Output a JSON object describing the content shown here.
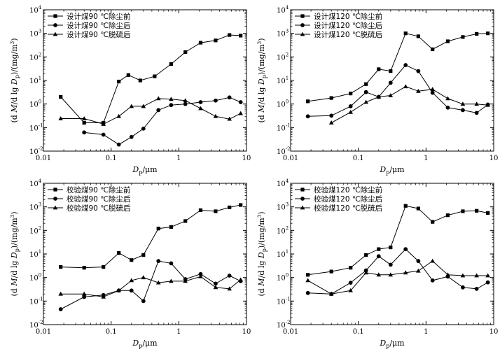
{
  "chart_data": [
    {
      "type": "line",
      "xscale": "log",
      "yscale": "log",
      "xlim": [
        0.01,
        10
      ],
      "ylim": [
        0.01,
        10000
      ],
      "xlabel": "Dp/μm",
      "ylabel": "(d M/d lg Dp)/(mg/m3)",
      "x_ticks": [
        "0.01",
        "0.1",
        "1",
        "10"
      ],
      "y_ticks": [
        {
          "base": "10",
          "exp": "-2"
        },
        {
          "base": "10",
          "exp": "-1"
        },
        {
          "base": "10",
          "exp": "0"
        },
        {
          "base": "10",
          "exp": "1"
        },
        {
          "base": "10",
          "exp": "2"
        },
        {
          "base": "10",
          "exp": "3"
        },
        {
          "base": "10",
          "exp": "4"
        }
      ],
      "legend_position": "top-left",
      "series": [
        {
          "name": "设计煤90 ℃除尘前",
          "marker": "square",
          "x": [
            0.018,
            0.04,
            0.077,
            0.13,
            0.18,
            0.27,
            0.44,
            0.77,
            1.25,
            2.1,
            3.5,
            5.6,
            8.2
          ],
          "y": [
            2.0,
            0.16,
            0.16,
            9,
            17,
            10,
            15,
            50,
            160,
            400,
            500,
            850,
            800
          ]
        },
        {
          "name": "设计煤90 ℃除尘后",
          "marker": "circle",
          "x": [
            0.04,
            0.077,
            0.13,
            0.2,
            0.3,
            0.5,
            0.77,
            1.25,
            2.1,
            3.5,
            5.6,
            8.2
          ],
          "y": [
            0.062,
            0.05,
            0.019,
            0.04,
            0.09,
            0.55,
            0.9,
            1.0,
            1.2,
            1.4,
            1.9,
            1.2
          ]
        },
        {
          "name": "设计煤90 ℃脱硫后",
          "marker": "triangle",
          "x": [
            0.018,
            0.04,
            0.077,
            0.13,
            0.2,
            0.3,
            0.5,
            0.77,
            1.25,
            2.1,
            3.5,
            5.6,
            8.2
          ],
          "y": [
            0.24,
            0.24,
            0.14,
            0.3,
            0.8,
            0.8,
            1.7,
            1.6,
            1.4,
            0.65,
            0.3,
            0.23,
            0.4
          ]
        }
      ]
    },
    {
      "type": "line",
      "xscale": "log",
      "yscale": "log",
      "xlim": [
        0.01,
        10
      ],
      "ylim": [
        0.01,
        10000
      ],
      "xlabel": "Dp/μm",
      "ylabel": "(d M/d lg Dp)/(mg/m3)",
      "x_ticks": [
        "0.01",
        "0.1",
        "1",
        "10"
      ],
      "y_ticks": [
        {
          "base": "10",
          "exp": "-2"
        },
        {
          "base": "10",
          "exp": "-1"
        },
        {
          "base": "10",
          "exp": "0"
        },
        {
          "base": "10",
          "exp": "1"
        },
        {
          "base": "10",
          "exp": "2"
        },
        {
          "base": "10",
          "exp": "3"
        },
        {
          "base": "10",
          "exp": "4"
        }
      ],
      "legend_position": "top-left",
      "series": [
        {
          "name": "设计煤120 ℃除尘前",
          "marker": "square",
          "x": [
            0.018,
            0.04,
            0.077,
            0.13,
            0.2,
            0.3,
            0.5,
            0.77,
            1.25,
            2.1,
            3.5,
            5.6,
            8.2
          ],
          "y": [
            1.3,
            1.8,
            2.8,
            7,
            30,
            25,
            1000,
            750,
            210,
            460,
            700,
            950,
            1000
          ]
        },
        {
          "name": "设计煤120 ℃除尘后",
          "marker": "circle",
          "x": [
            0.018,
            0.04,
            0.077,
            0.13,
            0.2,
            0.3,
            0.5,
            0.77,
            1.25,
            2.1,
            3.5,
            5.6,
            8.2
          ],
          "y": [
            0.3,
            0.32,
            0.8,
            3.2,
            2.0,
            8,
            45,
            25,
            3,
            0.7,
            0.55,
            0.42,
            0.95
          ]
        },
        {
          "name": "设计煤120 ℃脱硫后",
          "marker": "triangle",
          "x": [
            0.04,
            0.077,
            0.13,
            0.2,
            0.3,
            0.5,
            0.77,
            1.25,
            2.1,
            3.5,
            5.6,
            8.2
          ],
          "y": [
            0.16,
            0.45,
            1.2,
            2.0,
            2.3,
            5.5,
            3.5,
            4.2,
            1.7,
            1.0,
            1.0,
            0.9
          ]
        }
      ]
    },
    {
      "type": "line",
      "xscale": "log",
      "yscale": "log",
      "xlim": [
        0.01,
        10
      ],
      "ylim": [
        0.01,
        10000
      ],
      "xlabel": "Dp/μm",
      "ylabel": "(d M/d lg Dp)/(mg/m3)",
      "x_ticks": [
        "0.01",
        "0.1",
        "1",
        "10"
      ],
      "y_ticks": [
        {
          "base": "10",
          "exp": "-2"
        },
        {
          "base": "10",
          "exp": "-1"
        },
        {
          "base": "10",
          "exp": "0"
        },
        {
          "base": "10",
          "exp": "1"
        },
        {
          "base": "10",
          "exp": "2"
        },
        {
          "base": "10",
          "exp": "3"
        },
        {
          "base": "10",
          "exp": "4"
        }
      ],
      "legend_position": "top-left",
      "series": [
        {
          "name": "校验煤90 ℃除尘前",
          "marker": "square",
          "x": [
            0.018,
            0.04,
            0.077,
            0.13,
            0.2,
            0.3,
            0.5,
            0.77,
            1.25,
            2.1,
            3.5,
            5.6,
            8.2
          ],
          "y": [
            2.8,
            2.6,
            2.8,
            11,
            5.5,
            9,
            120,
            140,
            250,
            720,
            650,
            950,
            1200
          ]
        },
        {
          "name": "校验煤90 ℃除尘后",
          "marker": "circle",
          "x": [
            0.018,
            0.04,
            0.077,
            0.13,
            0.2,
            0.3,
            0.5,
            0.77,
            1.25,
            2.1,
            3.5,
            5.6,
            8.2
          ],
          "y": [
            0.045,
            0.15,
            0.18,
            0.28,
            0.28,
            0.1,
            5,
            4,
            0.85,
            1.4,
            0.55,
            1.2,
            0.7
          ]
        },
        {
          "name": "校验煤90 ℃脱硫后",
          "marker": "triangle",
          "x": [
            0.018,
            0.04,
            0.077,
            0.13,
            0.2,
            0.3,
            0.5,
            0.77,
            1.25,
            2.1,
            3.5,
            5.6,
            8.2
          ],
          "y": [
            0.2,
            0.2,
            0.15,
            0.28,
            0.75,
            1.0,
            0.6,
            0.7,
            0.7,
            1.1,
            0.38,
            0.33,
            0.8
          ]
        }
      ]
    },
    {
      "type": "line",
      "xscale": "log",
      "yscale": "log",
      "xlim": [
        0.01,
        10
      ],
      "ylim": [
        0.01,
        10000
      ],
      "xlabel": "Dp/μm",
      "ylabel": "(d M/d lg Dp)/(mg/m3)",
      "x_ticks": [
        "0.01",
        "0.1",
        "1",
        "10"
      ],
      "y_ticks": [
        {
          "base": "10",
          "exp": "-2"
        },
        {
          "base": "10",
          "exp": "-1"
        },
        {
          "base": "10",
          "exp": "0"
        },
        {
          "base": "10",
          "exp": "1"
        },
        {
          "base": "10",
          "exp": "2"
        },
        {
          "base": "10",
          "exp": "3"
        },
        {
          "base": "10",
          "exp": "4"
        }
      ],
      "legend_position": "top-left",
      "series": [
        {
          "name": "校验煤120 ℃除尘前",
          "marker": "square",
          "x": [
            0.018,
            0.04,
            0.077,
            0.13,
            0.2,
            0.3,
            0.5,
            0.77,
            1.25,
            2.1,
            3.5,
            5.6,
            8.2
          ],
          "y": [
            1.3,
            1.8,
            2.6,
            9,
            16,
            19,
            1100,
            850,
            230,
            440,
            650,
            680,
            550
          ]
        },
        {
          "name": "校验煤120 ℃除尘后",
          "marker": "circle",
          "x": [
            0.018,
            0.04,
            0.077,
            0.13,
            0.2,
            0.3,
            0.5,
            0.77,
            1.25,
            2.1,
            3.5,
            5.6,
            8.2
          ],
          "y": [
            0.22,
            0.2,
            0.6,
            2.0,
            8,
            3.5,
            16,
            5,
            0.75,
            1.1,
            0.38,
            0.33,
            0.62
          ]
        },
        {
          "name": "校验煤120 ℃脱硫后",
          "marker": "triangle",
          "x": [
            0.018,
            0.04,
            0.077,
            0.13,
            0.2,
            0.3,
            0.5,
            0.77,
            1.25,
            2.1,
            3.5,
            5.6,
            8.2
          ],
          "y": [
            0.75,
            0.2,
            0.28,
            1.6,
            1.3,
            1.3,
            1.6,
            1.9,
            5,
            1.3,
            1.2,
            1.2,
            1.2
          ]
        }
      ]
    }
  ]
}
